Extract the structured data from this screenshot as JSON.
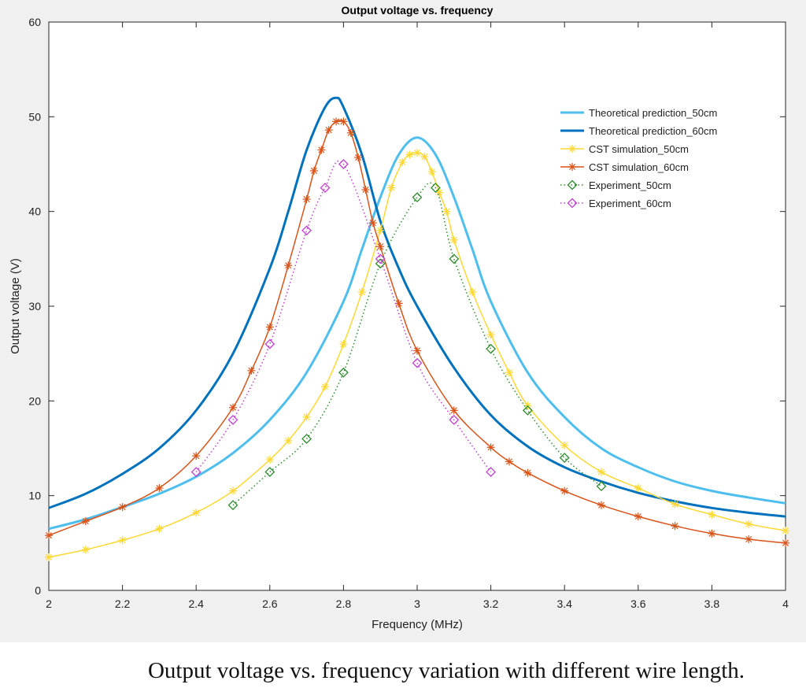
{
  "caption": "Output voltage vs. frequency variation with different wire length.",
  "chart_data": {
    "type": "line",
    "title": "Output voltage vs. frequency",
    "xlabel": "Frequency (MHz)",
    "ylabel": "Output voltage (V)",
    "xlim": [
      2,
      4
    ],
    "ylim": [
      0,
      60
    ],
    "xticks": [
      "2",
      "2.2",
      "2.4",
      "2.6",
      "2.8",
      "3",
      "3.2",
      "3.4",
      "3.6",
      "3.8",
      "4"
    ],
    "yticks": [
      "0",
      "10",
      "20",
      "30",
      "40",
      "50",
      "60"
    ],
    "legend_position": "top-right",
    "grid": false,
    "series": [
      {
        "name": "Theoretical prediction_50cm",
        "color": "#4dbeee",
        "style": "solid",
        "marker": "none",
        "x": [
          2.0,
          2.1,
          2.2,
          2.3,
          2.4,
          2.5,
          2.6,
          2.7,
          2.8,
          2.85,
          2.9,
          2.95,
          3.0,
          3.05,
          3.1,
          3.15,
          3.2,
          3.3,
          3.4,
          3.5,
          3.6,
          3.7,
          3.8,
          3.9,
          4.0
        ],
        "y": [
          6.5,
          7.5,
          8.8,
          10.2,
          12.0,
          14.5,
          18.0,
          23.0,
          30.5,
          36.0,
          41.5,
          46.0,
          47.8,
          46.0,
          41.5,
          36.0,
          30.5,
          23.0,
          18.3,
          15.0,
          13.0,
          11.5,
          10.5,
          9.8,
          9.2
        ]
      },
      {
        "name": "Theoretical prediction_60cm",
        "color": "#0072bd",
        "style": "solid",
        "marker": "none",
        "x": [
          2.0,
          2.1,
          2.2,
          2.3,
          2.4,
          2.5,
          2.6,
          2.65,
          2.7,
          2.75,
          2.78,
          2.8,
          2.85,
          2.9,
          2.95,
          3.0,
          3.1,
          3.2,
          3.3,
          3.4,
          3.5,
          3.6,
          3.7,
          3.8,
          3.9,
          4.0
        ],
        "y": [
          8.7,
          10.2,
          12.3,
          15.0,
          19.0,
          25.0,
          34.0,
          40.0,
          46.5,
          51.0,
          52.0,
          51.0,
          46.0,
          39.0,
          34.0,
          30.0,
          23.5,
          18.5,
          15.2,
          13.0,
          11.5,
          10.3,
          9.4,
          8.7,
          8.2,
          7.8
        ]
      },
      {
        "name": "CST simulation_50cm",
        "color": "#fdd835",
        "style": "solid",
        "marker": "star",
        "x": [
          2.0,
          2.1,
          2.2,
          2.3,
          2.4,
          2.5,
          2.6,
          2.65,
          2.7,
          2.75,
          2.8,
          2.85,
          2.9,
          2.93,
          2.96,
          2.98,
          3.0,
          3.02,
          3.04,
          3.06,
          3.08,
          3.1,
          3.15,
          3.2,
          3.25,
          3.3,
          3.4,
          3.5,
          3.6,
          3.7,
          3.8,
          3.9,
          4.0
        ],
        "y": [
          3.5,
          4.3,
          5.3,
          6.5,
          8.2,
          10.5,
          13.8,
          15.8,
          18.3,
          21.5,
          26.0,
          31.5,
          38.0,
          42.5,
          45.2,
          46.0,
          46.2,
          45.8,
          44.2,
          42.0,
          40.0,
          37.0,
          31.5,
          27.0,
          23.0,
          19.5,
          15.3,
          12.5,
          10.8,
          9.1,
          8.0,
          7.0,
          6.3
        ]
      },
      {
        "name": "CST simulation_60cm",
        "color": "#d95319",
        "style": "solid",
        "marker": "star",
        "x": [
          2.0,
          2.1,
          2.2,
          2.3,
          2.4,
          2.5,
          2.55,
          2.6,
          2.65,
          2.7,
          2.72,
          2.74,
          2.76,
          2.78,
          2.8,
          2.82,
          2.84,
          2.86,
          2.88,
          2.9,
          2.95,
          3.0,
          3.1,
          3.2,
          3.25,
          3.3,
          3.4,
          3.5,
          3.6,
          3.7,
          3.8,
          3.9,
          4.0
        ],
        "y": [
          5.8,
          7.3,
          8.8,
          10.8,
          14.2,
          19.3,
          23.2,
          27.8,
          34.3,
          41.3,
          44.3,
          46.5,
          48.6,
          49.5,
          49.5,
          48.3,
          45.7,
          42.3,
          38.8,
          36.3,
          30.3,
          25.3,
          19.0,
          15.1,
          13.6,
          12.4,
          10.5,
          9.0,
          7.8,
          6.8,
          6.0,
          5.4,
          5.0
        ]
      },
      {
        "name": "Experiment_50cm",
        "color": "#2e8b2e",
        "style": "dotted",
        "marker": "diamond",
        "x": [
          2.5,
          2.6,
          2.7,
          2.8,
          2.9,
          3.0,
          3.05,
          3.1,
          3.2,
          3.3,
          3.4,
          3.5
        ],
        "y": [
          9.0,
          12.5,
          16.0,
          23.0,
          34.5,
          41.5,
          42.5,
          35.0,
          25.5,
          19.0,
          14.0,
          11.0
        ]
      },
      {
        "name": "Experiment_60cm",
        "color": "#c040d0",
        "style": "dotted",
        "marker": "diamond",
        "x": [
          2.4,
          2.5,
          2.6,
          2.7,
          2.75,
          2.8,
          2.9,
          3.0,
          3.1,
          3.2
        ],
        "y": [
          12.5,
          18.0,
          26.0,
          38.0,
          42.5,
          45.0,
          35.0,
          24.0,
          18.0,
          12.5
        ]
      }
    ]
  }
}
